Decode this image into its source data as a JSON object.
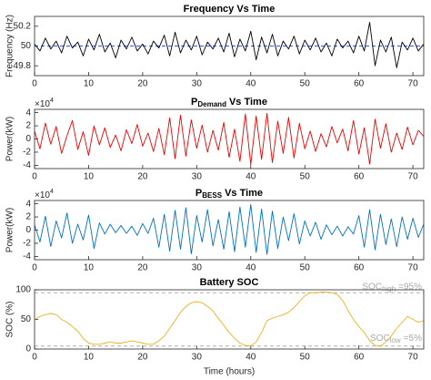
{
  "chart_data": [
    {
      "type": "line",
      "title": "Frequency Vs Time",
      "ylabel": "Frequency (Hz)",
      "xlim": [
        0,
        72
      ],
      "xticks": [
        0,
        10,
        20,
        30,
        40,
        50,
        60,
        70
      ],
      "ylim": [
        49.7,
        50.3
      ],
      "yticks": [
        49.8,
        50,
        50.2
      ],
      "x": [
        0,
        1,
        2,
        3,
        4,
        5,
        6,
        7,
        8,
        9,
        10,
        11,
        12,
        13,
        14,
        15,
        16,
        17,
        18,
        19,
        20,
        21,
        22,
        23,
        24,
        25,
        26,
        27,
        28,
        29,
        30,
        31,
        32,
        33,
        34,
        35,
        36,
        37,
        38,
        39,
        40,
        41,
        42,
        43,
        44,
        45,
        46,
        47,
        48,
        49,
        50,
        51,
        52,
        53,
        54,
        55,
        56,
        57,
        58,
        59,
        60,
        61,
        62,
        63,
        64,
        65,
        66,
        67,
        68,
        69,
        70,
        71,
        72
      ],
      "series": [
        {
          "color": "#000000",
          "values": [
            50.02,
            49.95,
            50.08,
            49.97,
            50.05,
            49.93,
            50.1,
            49.98,
            50.04,
            49.9,
            50.07,
            49.96,
            50.12,
            49.94,
            50.03,
            49.88,
            50.06,
            49.97,
            50.09,
            49.95,
            50.02,
            49.92,
            50.05,
            49.98,
            50.11,
            49.9,
            50.14,
            49.93,
            50.06,
            49.96,
            50.1,
            49.91,
            50.04,
            49.97,
            50.08,
            49.94,
            50.13,
            49.89,
            50.07,
            49.95,
            50.15,
            49.86,
            50.09,
            49.93,
            50.12,
            49.9,
            50.05,
            49.97,
            50.1,
            49.92,
            50.06,
            49.96,
            50.08,
            49.94,
            50.03,
            49.9,
            50.07,
            49.98,
            50.05,
            49.93,
            50.1,
            49.95,
            50.24,
            49.8,
            50.06,
            49.94,
            50.09,
            49.78,
            50.04,
            49.96,
            50.08,
            49.95,
            50.02
          ]
        }
      ],
      "hlines": [
        {
          "value": 50,
          "color": "#3355ff"
        }
      ]
    },
    {
      "type": "line",
      "title": {
        "text": "P",
        "sub": "Demand",
        "suffix": "Vs Time"
      },
      "ylabel": "Power(kW)",
      "exponent": {
        "base": "×10",
        "power": "4"
      },
      "xlim": [
        0,
        72
      ],
      "xticks": [
        0,
        10,
        20,
        30,
        40,
        50,
        60,
        70
      ],
      "ylim": [
        -4.5,
        4.5
      ],
      "yticks": [
        -4,
        -2,
        0,
        2,
        4
      ],
      "x": [
        0,
        1,
        2,
        3,
        4,
        5,
        6,
        7,
        8,
        9,
        10,
        11,
        12,
        13,
        14,
        15,
        16,
        17,
        18,
        19,
        20,
        21,
        22,
        23,
        24,
        25,
        26,
        27,
        28,
        29,
        30,
        31,
        32,
        33,
        34,
        35,
        36,
        37,
        38,
        39,
        40,
        41,
        42,
        43,
        44,
        45,
        46,
        47,
        48,
        49,
        50,
        51,
        52,
        53,
        54,
        55,
        56,
        57,
        58,
        59,
        60,
        61,
        62,
        63,
        64,
        65,
        66,
        67,
        68,
        69,
        70,
        71,
        72
      ],
      "series": [
        {
          "color": "#ee0000",
          "values": [
            1.2,
            -1.5,
            2.4,
            -0.8,
            1.9,
            -2.2,
            0.5,
            2.8,
            -1.6,
            1.1,
            -2.5,
            2.0,
            -0.9,
            1.7,
            -1.3,
            0.6,
            -1.8,
            1.4,
            -0.7,
            2.2,
            -1.1,
            0.9,
            -1.9,
            1.6,
            -2.4,
            3.2,
            -3.0,
            3.6,
            -2.6,
            2.9,
            -1.4,
            2.1,
            -2.0,
            1.3,
            -1.7,
            2.5,
            -2.8,
            1.5,
            -3.4,
            3.8,
            -3.9,
            3.5,
            -3.1,
            3.9,
            -3.6,
            2.7,
            -2.2,
            3.3,
            -2.9,
            2.4,
            -1.5,
            1.2,
            -1.9,
            0.8,
            -1.2,
            1.9,
            -0.6,
            1.5,
            -1.8,
            2.8,
            -2.3,
            1.7,
            -3.8,
            3.0,
            -1.4,
            2.3,
            -2.0,
            0.9,
            -1.6,
            1.8,
            -0.9,
            1.3,
            0.4
          ]
        }
      ]
    },
    {
      "type": "line",
      "title": {
        "text": "P",
        "sub": "BESS",
        "suffix": "Vs Time"
      },
      "ylabel": "Power(kW)",
      "exponent": {
        "base": "×10",
        "power": "4"
      },
      "xlim": [
        0,
        72
      ],
      "xticks": [
        0,
        10,
        20,
        30,
        40,
        50,
        60,
        70
      ],
      "ylim": [
        -4.5,
        4.5
      ],
      "yticks": [
        -4,
        -2,
        0,
        2,
        4
      ],
      "x": [
        0,
        1,
        2,
        3,
        4,
        5,
        6,
        7,
        8,
        9,
        10,
        11,
        12,
        13,
        14,
        15,
        16,
        17,
        18,
        19,
        20,
        21,
        22,
        23,
        24,
        25,
        26,
        27,
        28,
        29,
        30,
        31,
        32,
        33,
        34,
        35,
        36,
        37,
        38,
        39,
        40,
        41,
        42,
        43,
        44,
        45,
        46,
        47,
        48,
        49,
        50,
        51,
        52,
        53,
        54,
        55,
        56,
        57,
        58,
        59,
        60,
        61,
        62,
        63,
        64,
        65,
        66,
        67,
        68,
        69,
        70,
        71,
        72
      ],
      "series": [
        {
          "color": "#0072bd",
          "values": [
            0.8,
            -1.8,
            2.1,
            -2.5,
            1.4,
            -1.2,
            2.6,
            -2.0,
            0.9,
            -1.5,
            2.3,
            -2.8,
            1.1,
            -0.6,
            0.9,
            -0.4,
            0.7,
            -0.5,
            0.6,
            -0.8,
            1.0,
            -0.5,
            1.8,
            -2.6,
            2.4,
            -3.2,
            3.0,
            -2.9,
            3.4,
            -3.6,
            2.2,
            -1.8,
            3.1,
            -2.4,
            1.6,
            -2.9,
            2.8,
            -3.3,
            3.5,
            -2.6,
            3.9,
            -3.4,
            3.2,
            -3.7,
            2.9,
            -2.8,
            2.0,
            -1.6,
            2.5,
            -2.1,
            1.4,
            -0.9,
            1.2,
            -1.4,
            0.8,
            -0.7,
            0.6,
            -0.9,
            0.5,
            -0.6,
            2.2,
            -2.6,
            3.1,
            -3.0,
            2.4,
            -2.2,
            1.7,
            -2.5,
            2.0,
            -1.4,
            1.8,
            -1.1,
            0.9
          ]
        }
      ]
    },
    {
      "type": "line",
      "title": "Battery SOC",
      "ylabel": "SOC (%)",
      "xlabel": "Time (hours)",
      "xlim": [
        0,
        72
      ],
      "xticks": [
        0,
        10,
        20,
        30,
        40,
        50,
        60,
        70
      ],
      "ylim": [
        0,
        100
      ],
      "yticks": [
        0,
        50,
        100
      ],
      "x": [
        0,
        1,
        2,
        3,
        4,
        5,
        6,
        7,
        8,
        9,
        10,
        11,
        12,
        13,
        14,
        15,
        16,
        17,
        18,
        19,
        20,
        21,
        22,
        23,
        24,
        25,
        26,
        27,
        28,
        29,
        30,
        31,
        32,
        33,
        34,
        35,
        36,
        37,
        38,
        39,
        40,
        41,
        42,
        43,
        44,
        45,
        46,
        47,
        48,
        49,
        50,
        51,
        52,
        53,
        54,
        55,
        56,
        57,
        58,
        59,
        60,
        61,
        62,
        63,
        64,
        65,
        66,
        67,
        68,
        69,
        70,
        71,
        72
      ],
      "series": [
        {
          "color": "#edb120",
          "values": [
            50,
            55,
            58,
            60,
            58,
            50,
            45,
            38,
            30,
            18,
            10,
            8,
            8,
            10,
            12,
            10,
            10,
            12,
            14,
            12,
            10,
            8,
            8,
            14,
            22,
            35,
            48,
            62,
            72,
            78,
            80,
            78,
            72,
            64,
            52,
            40,
            28,
            18,
            10,
            6,
            5,
            12,
            28,
            48,
            52,
            55,
            58,
            62,
            70,
            80,
            90,
            95,
            95,
            96,
            96,
            95,
            92,
            82,
            65,
            50,
            38,
            28,
            14,
            6,
            5,
            12,
            22,
            35,
            45,
            55,
            50,
            45,
            48
          ]
        }
      ],
      "hlines": [
        {
          "value": 95,
          "color": "#b0b0b0",
          "label": {
            "text": "SOC",
            "sub": "high",
            "suffix": "=95%"
          }
        },
        {
          "value": 5,
          "color": "#b0b0b0",
          "label": {
            "text": "SOC",
            "sub": "low",
            "suffix": "=5%"
          }
        }
      ]
    }
  ]
}
